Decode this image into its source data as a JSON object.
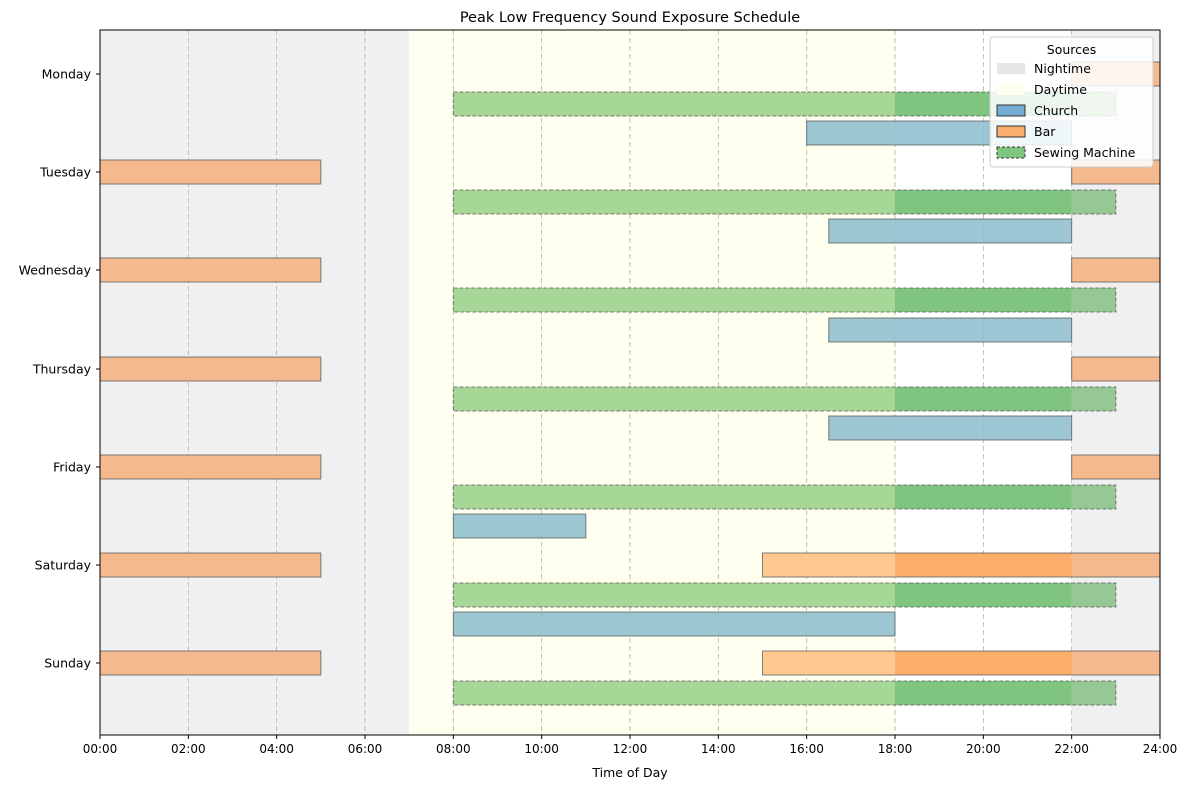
{
  "chart_data": {
    "type": "gantt",
    "title": "Peak Low Frequency Sound Exposure Schedule",
    "xlabel": "Time of Day",
    "ylabel": "",
    "xlim": [
      0,
      24
    ],
    "x_ticks": [
      "00:00",
      "02:00",
      "04:00",
      "06:00",
      "08:00",
      "10:00",
      "12:00",
      "14:00",
      "16:00",
      "18:00",
      "20:00",
      "22:00",
      "24:00"
    ],
    "x_tick_hours": [
      0,
      2,
      4,
      6,
      8,
      10,
      12,
      14,
      16,
      18,
      20,
      22,
      24
    ],
    "categories": [
      "Monday",
      "Tuesday",
      "Wednesday",
      "Thursday",
      "Friday",
      "Saturday",
      "Sunday"
    ],
    "grid": "vertical dashed",
    "legend": {
      "title": "Sources",
      "placement": "top-right",
      "entries": [
        {
          "label": "Nightime",
          "color": "#e6e6e6"
        },
        {
          "label": "Daytime",
          "color": "#fffff0"
        },
        {
          "label": "Church",
          "color": "#74acd1"
        },
        {
          "label": "Bar",
          "color": "#f7ae6e"
        },
        {
          "label": "Sewing Machine",
          "color": "#7fc47f"
        }
      ]
    },
    "background_periods": [
      {
        "label": "Nightime",
        "start": 0,
        "end": 7,
        "color": "#f0f0f0"
      },
      {
        "label": "Daytime",
        "start": 7,
        "end": 18,
        "color": "#fffff0"
      },
      {
        "label": "Nightime",
        "start": 22,
        "end": 24,
        "color": "#f0f0f0"
      }
    ],
    "series": [
      {
        "name": "Church",
        "color": "#74acd1",
        "intervals": [
          {
            "day": "Tuesday",
            "start": 16,
            "end": 22
          },
          {
            "day": "Wednesday",
            "start": 16.5,
            "end": 22
          },
          {
            "day": "Thursday",
            "start": 16.5,
            "end": 22
          },
          {
            "day": "Friday",
            "start": 16.5,
            "end": 22
          },
          {
            "day": "Saturday",
            "start": 8,
            "end": 11
          },
          {
            "day": "Sunday",
            "start": 8,
            "end": 18
          }
        ]
      },
      {
        "name": "Bar",
        "color": "#f7ae6e",
        "intervals": [
          {
            "day": "Monday",
            "start": 22,
            "end": 24
          },
          {
            "day": "Tuesday",
            "start": 0,
            "end": 5
          },
          {
            "day": "Tuesday",
            "start": 22,
            "end": 24
          },
          {
            "day": "Wednesday",
            "start": 0,
            "end": 5
          },
          {
            "day": "Wednesday",
            "start": 22,
            "end": 24
          },
          {
            "day": "Thursday",
            "start": 0,
            "end": 5
          },
          {
            "day": "Thursday",
            "start": 22,
            "end": 24
          },
          {
            "day": "Friday",
            "start": 0,
            "end": 5
          },
          {
            "day": "Friday",
            "start": 22,
            "end": 24
          },
          {
            "day": "Saturday",
            "start": 0,
            "end": 5
          },
          {
            "day": "Saturday",
            "start": 15,
            "end": 24
          },
          {
            "day": "Sunday",
            "start": 0,
            "end": 5
          },
          {
            "day": "Sunday",
            "start": 15,
            "end": 24
          }
        ]
      },
      {
        "name": "Sewing Machine",
        "color": "#7fc47f",
        "intervals": [
          {
            "day": "Monday",
            "start": 8,
            "end": 23
          },
          {
            "day": "Tuesday",
            "start": 8,
            "end": 23
          },
          {
            "day": "Wednesday",
            "start": 8,
            "end": 23
          },
          {
            "day": "Thursday",
            "start": 8,
            "end": 23
          },
          {
            "day": "Friday",
            "start": 8,
            "end": 23
          },
          {
            "day": "Saturday",
            "start": 8,
            "end": 23
          },
          {
            "day": "Sunday",
            "start": 8,
            "end": 23
          }
        ]
      }
    ]
  }
}
